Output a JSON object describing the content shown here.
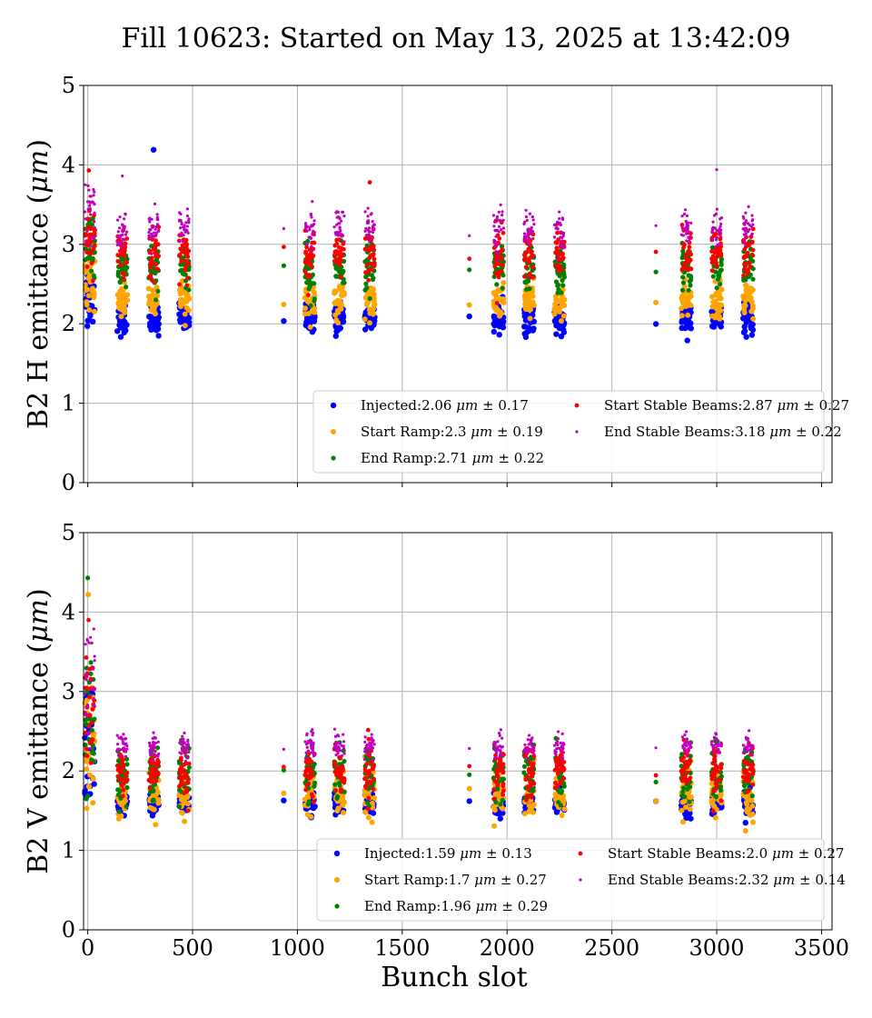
{
  "figure": {
    "title": "Fill 10623: Started on May 13, 2025 at 13:42:09"
  },
  "chart_data": [
    {
      "type": "scatter",
      "ylabel": "B2 H emittance (μm)",
      "xlabel": "",
      "xlim": [
        -20,
        3550
      ],
      "ylim": [
        0,
        5
      ],
      "xticks": [
        0,
        500,
        1000,
        1500,
        2000,
        2500,
        3000,
        3500
      ],
      "yticks": [
        0,
        1,
        2,
        3,
        4,
        5
      ],
      "show_x_tick_labels": false,
      "grid": true,
      "legend_position": "lower-right",
      "train_centers": [
        10,
        165,
        315,
        460,
        935,
        1060,
        1200,
        1345,
        1820,
        1960,
        2105,
        2250,
        2710,
        2855,
        3000,
        3150
      ],
      "single_bunch_trains": [
        935,
        1820,
        2710
      ],
      "outliers": [
        {
          "series": 0,
          "x": 314,
          "y": 4.19
        },
        {
          "series": 3,
          "x": 1345,
          "y": 3.78
        },
        {
          "series": 4,
          "x": 3000,
          "y": 3.94
        },
        {
          "series": 3,
          "x": 5,
          "y": 3.93
        },
        {
          "series": 4,
          "x": 165,
          "y": 3.86
        }
      ],
      "series": [
        {
          "name": "Injected:2.06 μm ± 0.17",
          "mean": 2.06,
          "std": 0.17,
          "color": "#0000ff",
          "marker_size": 3.2
        },
        {
          "name": "Start Ramp:2.3 μm ± 0.19",
          "mean": 2.3,
          "std": 0.19,
          "color": "#ffa500",
          "marker_size": 3.0
        },
        {
          "name": "End Ramp:2.71 μm ± 0.22",
          "mean": 2.71,
          "std": 0.22,
          "color": "#008000",
          "marker_size": 2.6
        },
        {
          "name": "Start Stable Beams:2.87 μm ± 0.27",
          "mean": 2.87,
          "std": 0.27,
          "color": "#ff0000",
          "marker_size": 2.4
        },
        {
          "name": "End Stable Beams:3.18 μm ± 0.22",
          "mean": 3.18,
          "std": 0.22,
          "color": "#bf00bf",
          "marker_size": 1.6
        }
      ]
    },
    {
      "type": "scatter",
      "ylabel": "B2 V emittance (μm)",
      "xlabel": "Bunch slot",
      "xlim": [
        -20,
        3550
      ],
      "ylim": [
        0,
        5
      ],
      "xticks": [
        0,
        500,
        1000,
        1500,
        2000,
        2500,
        3000,
        3500
      ],
      "yticks": [
        0,
        1,
        2,
        3,
        4,
        5
      ],
      "show_x_tick_labels": true,
      "grid": true,
      "legend_position": "lower-right",
      "train_centers": [
        10,
        165,
        315,
        460,
        935,
        1060,
        1200,
        1345,
        1820,
        1960,
        2105,
        2250,
        2710,
        2855,
        3000,
        3150
      ],
      "single_bunch_trains": [
        935,
        1820,
        2710
      ],
      "outliers": [
        {
          "series": 2,
          "x": 0,
          "y": 4.43
        },
        {
          "series": 1,
          "x": 2,
          "y": 4.22
        },
        {
          "series": 3,
          "x": 4,
          "y": 3.9
        }
      ],
      "series": [
        {
          "name": "Injected:1.59 μm ± 0.13",
          "mean": 1.59,
          "std": 0.13,
          "color": "#0000ff",
          "marker_size": 3.2
        },
        {
          "name": "Start Ramp:1.7 μm ± 0.27",
          "mean": 1.7,
          "std": 0.27,
          "color": "#ffa500",
          "marker_size": 3.0
        },
        {
          "name": "End Ramp:1.96 μm ± 0.29",
          "mean": 1.96,
          "std": 0.29,
          "color": "#008000",
          "marker_size": 2.6
        },
        {
          "name": "Start Stable Beams:2.0 μm ± 0.27",
          "mean": 2.0,
          "std": 0.27,
          "color": "#ff0000",
          "marker_size": 2.4
        },
        {
          "name": "End Stable Beams:2.32 μm ± 0.14",
          "mean": 2.32,
          "std": 0.14,
          "color": "#bf00bf",
          "marker_size": 1.6
        }
      ]
    }
  ]
}
